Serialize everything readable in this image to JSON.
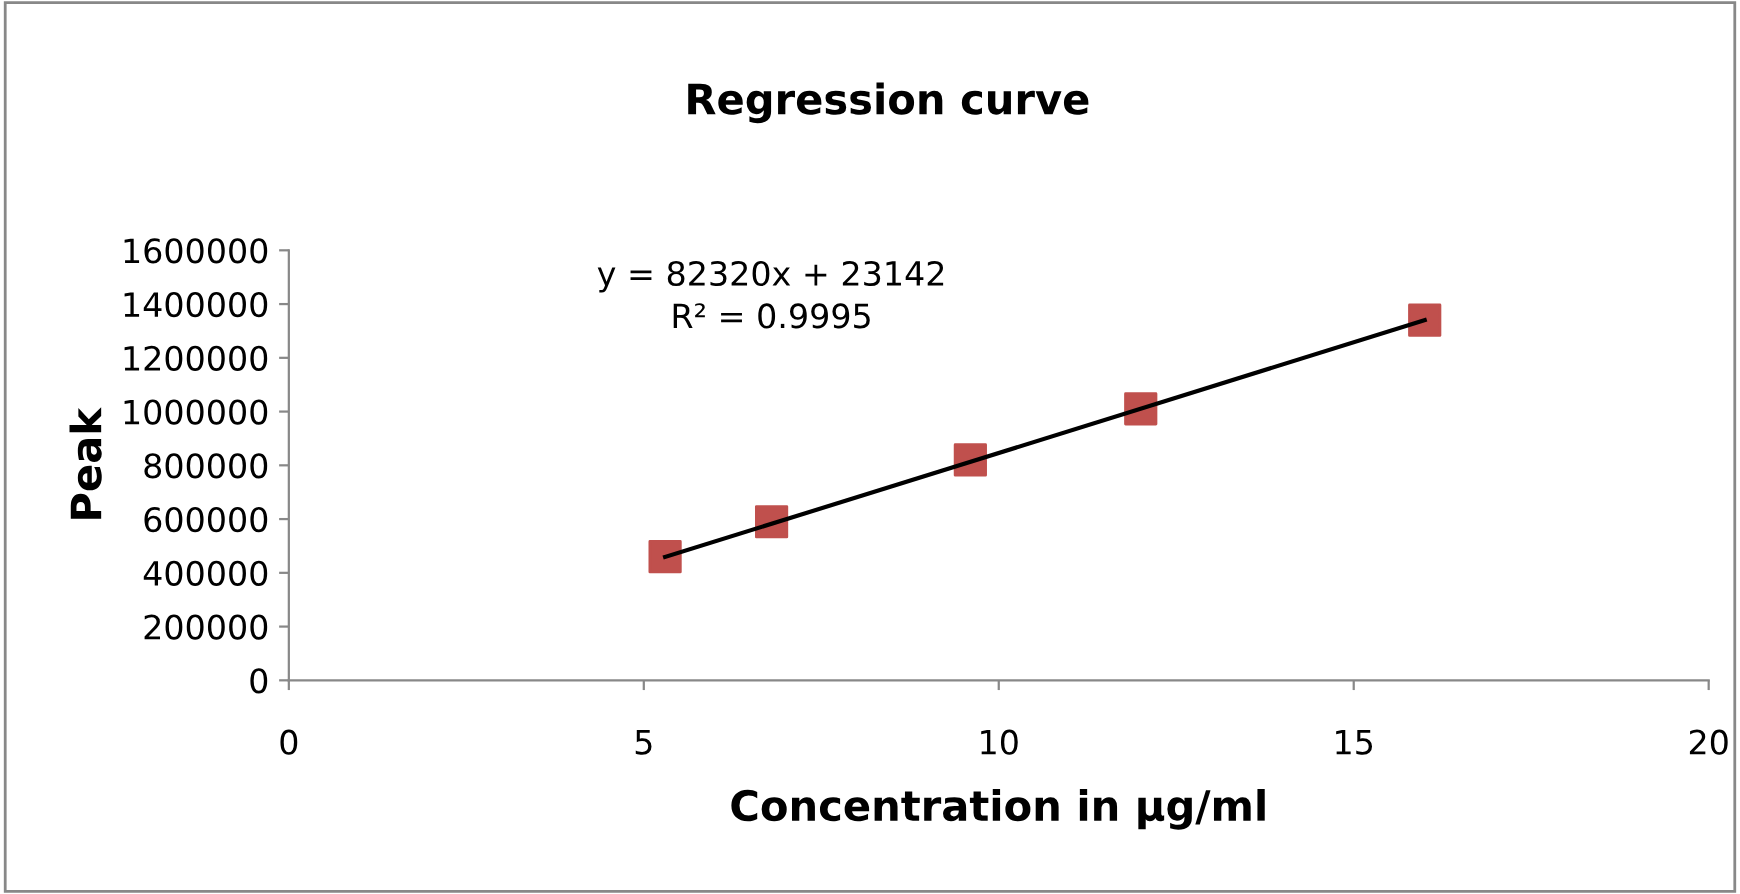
{
  "chart_data": {
    "type": "scatter",
    "title": "Regression curve",
    "xlabel": "Concentration in µg/ml",
    "ylabel": "Peak",
    "x": [
      5.3,
      6.8,
      9.6,
      12,
      16
    ],
    "series": [
      {
        "color": "#c0504d",
        "values": [
          460000,
          590000,
          820000,
          1010000,
          1340000
        ],
        "marker": "square"
      },
      {
        "type": "line",
        "color": "#000000",
        "x": [
          5.3,
          16
        ],
        "values": [
          459000,
          1340000
        ],
        "marker": "none",
        "line_style": "solid"
      }
    ],
    "annotations": [
      "y = 82320x + 23142\nR² = 0.9995"
    ],
    "xlim": [
      0,
      20
    ],
    "xticks": [
      0,
      5,
      10,
      15,
      20
    ],
    "ylim": [
      0,
      1600000
    ],
    "yticks": [
      0,
      200000,
      400000,
      600000,
      800000,
      1000000,
      1200000,
      1400000,
      1600000
    ],
    "grid": false,
    "legend": false
  }
}
